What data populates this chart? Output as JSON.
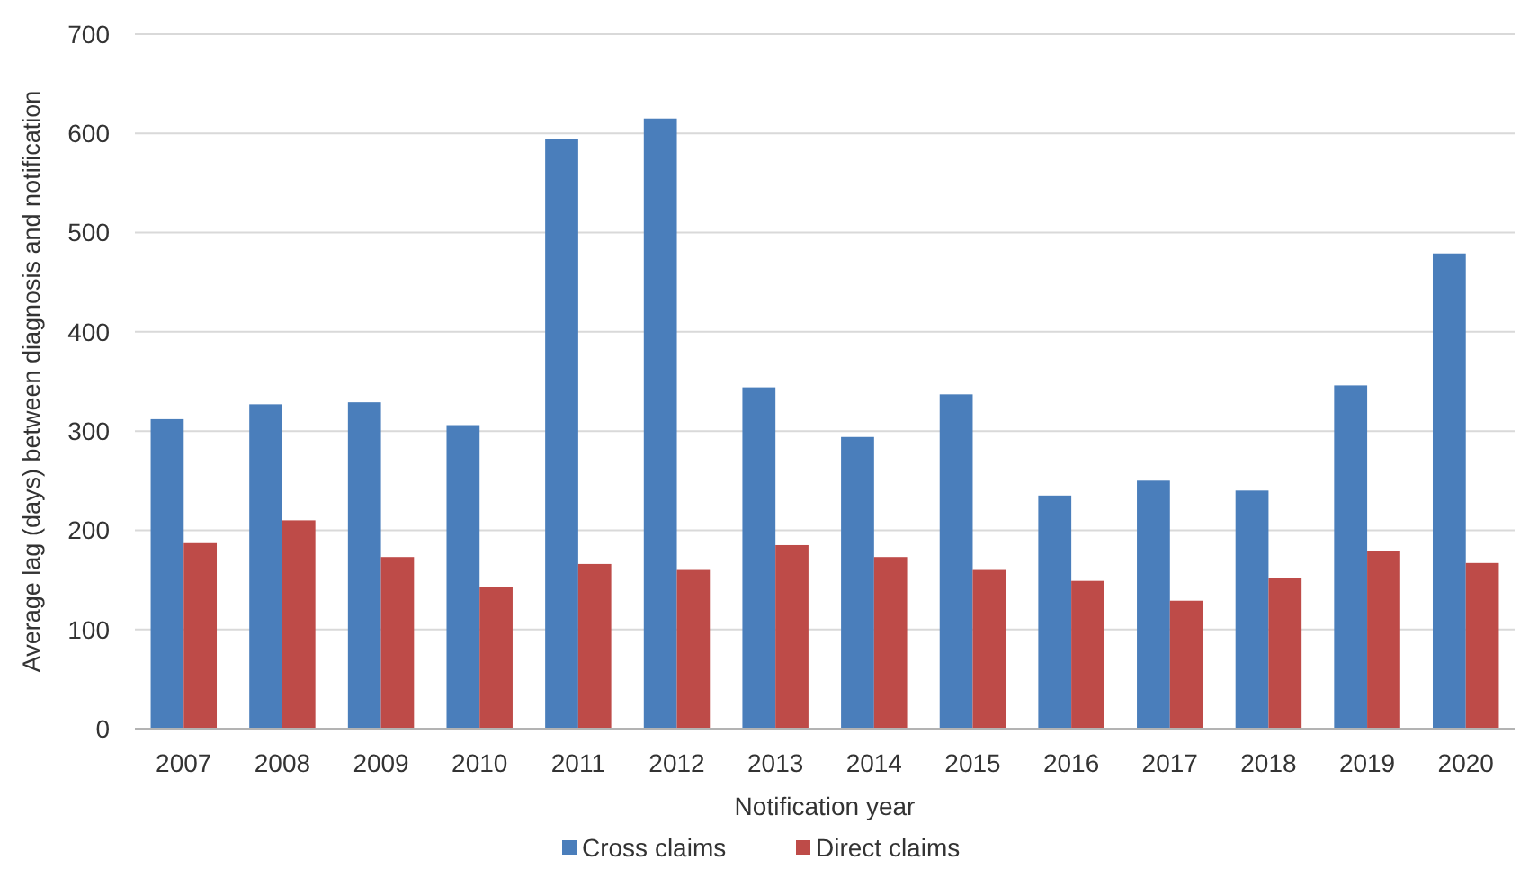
{
  "chart_data": {
    "type": "bar",
    "xlabel": "Notification year",
    "ylabel": "Average lag (days) between diagnosis and notification",
    "categories": [
      "2007",
      "2008",
      "2009",
      "2010",
      "2011",
      "2012",
      "2013",
      "2014",
      "2015",
      "2016",
      "2017",
      "2018",
      "2019",
      "2020"
    ],
    "series": [
      {
        "name": "Cross claims",
        "color": "#4a7ebb",
        "values": [
          312,
          327,
          329,
          306,
          594,
          615,
          344,
          294,
          337,
          235,
          250,
          240,
          346,
          479
        ]
      },
      {
        "name": "Direct claims",
        "color": "#be4b48",
        "values": [
          187,
          210,
          173,
          143,
          166,
          160,
          185,
          173,
          160,
          149,
          129,
          152,
          179,
          167
        ]
      }
    ],
    "ylim": [
      0,
      700
    ],
    "yticks": [
      0,
      100,
      200,
      300,
      400,
      500,
      600,
      700
    ],
    "grid": "y",
    "legend": "bottom"
  }
}
